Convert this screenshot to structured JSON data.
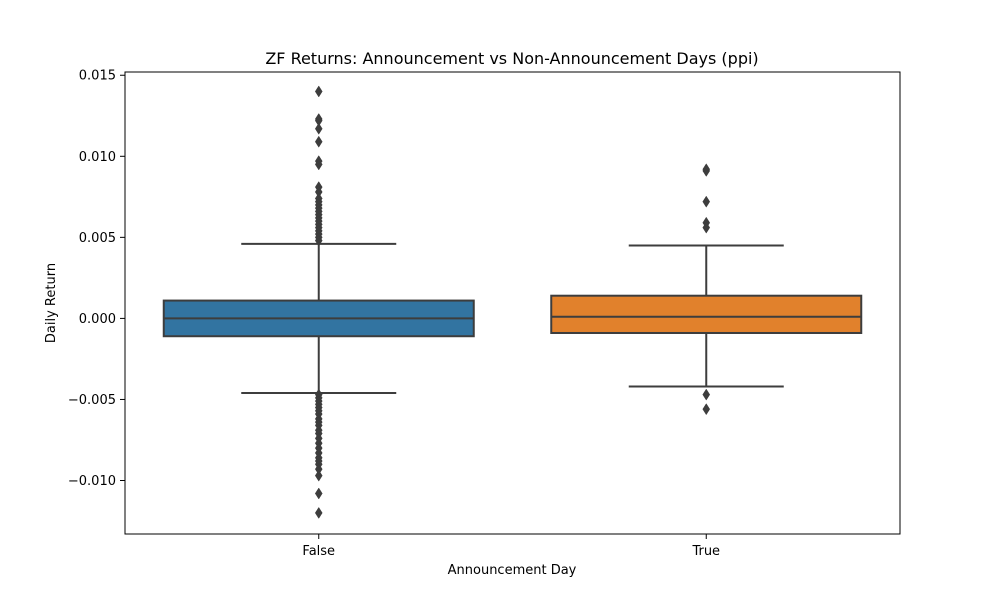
{
  "chart_data": {
    "type": "box",
    "title": "ZF Returns: Announcement vs Non-Announcement Days (ppi)",
    "xlabel": "Announcement Day",
    "ylabel": "Daily Return",
    "ylim": [
      -0.0133,
      0.0152
    ],
    "yticks": [
      -0.01,
      -0.005,
      0.0,
      0.005,
      0.01,
      0.015
    ],
    "ytick_labels": [
      "−0.010",
      "−0.005",
      "0.000",
      "0.005",
      "0.010",
      "0.015"
    ],
    "categories": [
      "False",
      "True"
    ],
    "grid": false,
    "boxes": [
      {
        "category": "False",
        "color": "#3274a1",
        "whisker_low": -0.0046,
        "q1": -0.0011,
        "median": 0.0,
        "q3": 0.0011,
        "whisker_high": 0.0046,
        "outliers": [
          0.014,
          0.0123,
          0.0122,
          0.0117,
          0.0109,
          0.0097,
          0.0095,
          0.0081,
          0.0078,
          0.0074,
          0.0072,
          0.007,
          0.0068,
          0.0066,
          0.0064,
          0.0062,
          0.006,
          0.0058,
          0.0056,
          0.0054,
          0.0052,
          0.005,
          0.0048,
          -0.0047,
          -0.0049,
          -0.0051,
          -0.0053,
          -0.0055,
          -0.0057,
          -0.0059,
          -0.0062,
          -0.0064,
          -0.0066,
          -0.0069,
          -0.0071,
          -0.0074,
          -0.0077,
          -0.008,
          -0.0083,
          -0.0086,
          -0.0088,
          -0.009,
          -0.0093,
          -0.0097,
          -0.0108,
          -0.012
        ]
      },
      {
        "category": "True",
        "color": "#e1812c",
        "whisker_low": -0.0042,
        "q1": -0.0009,
        "median": 0.0001,
        "q3": 0.0014,
        "whisker_high": 0.0045,
        "outliers": [
          0.0092,
          0.0091,
          0.0072,
          0.0059,
          0.0056,
          -0.0047,
          -0.0056
        ]
      }
    ]
  }
}
